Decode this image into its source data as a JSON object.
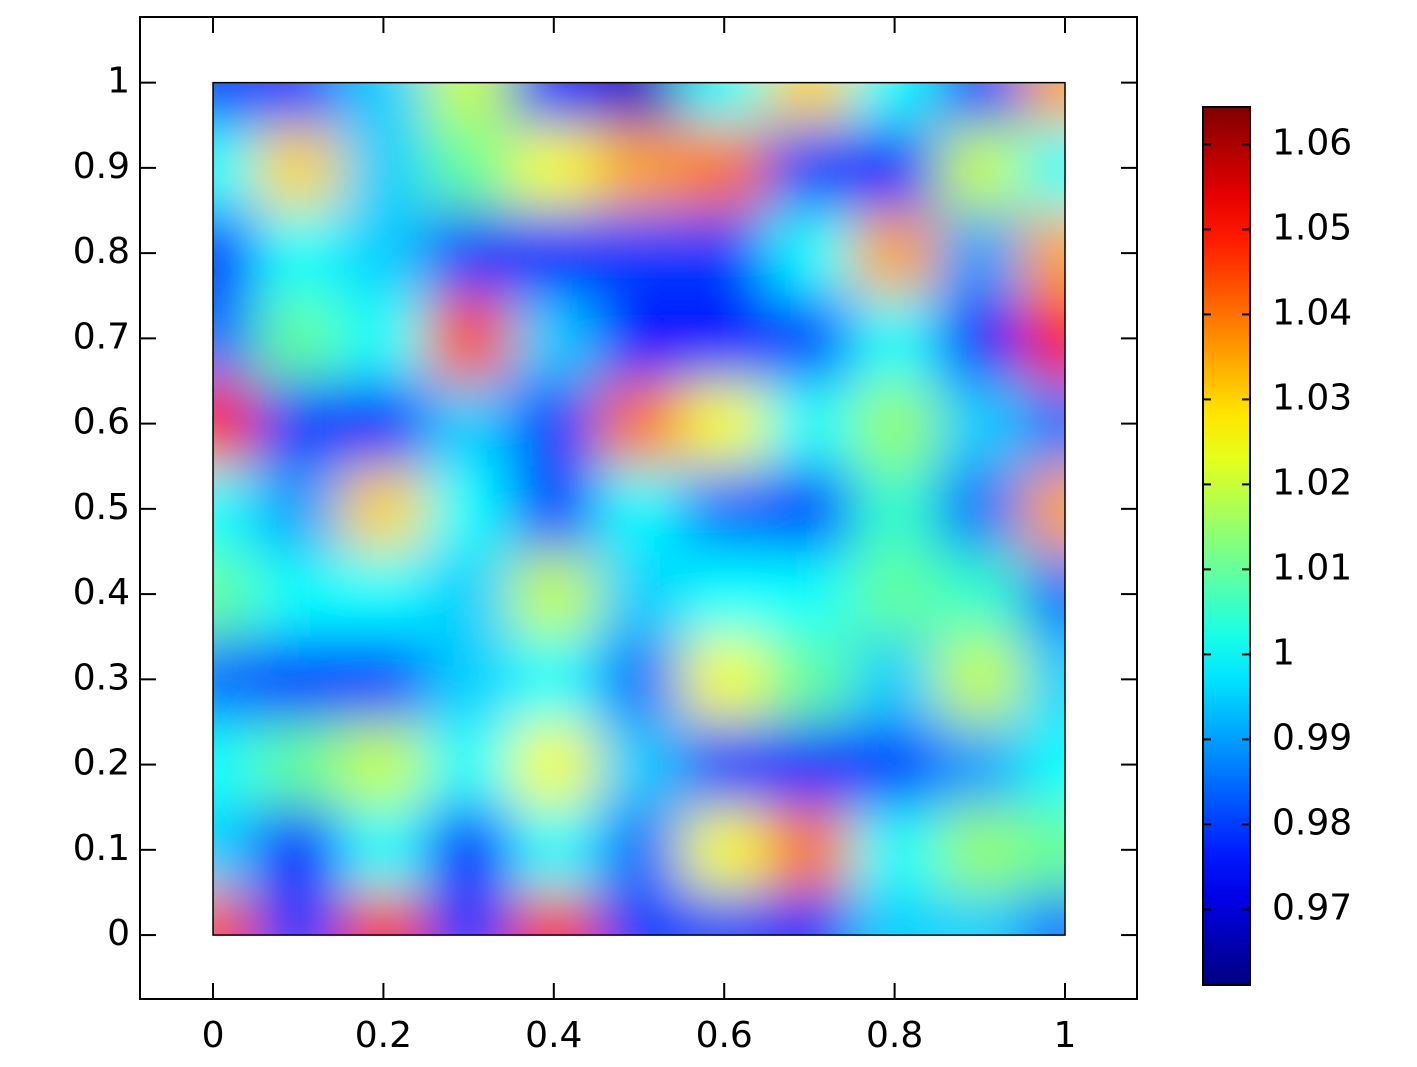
{
  "chart_data": {
    "type": "heatmap",
    "colormap": "jet",
    "x": [
      0,
      0.1,
      0.2,
      0.3,
      0.4,
      0.5,
      0.6,
      0.7,
      0.8,
      0.9,
      1
    ],
    "y": [
      0,
      0.1,
      0.2,
      0.3,
      0.4,
      0.5,
      0.6,
      0.7,
      0.8,
      0.9,
      1
    ],
    "z": [
      [
        1.045,
        0.98,
        1.05,
        0.98,
        1.05,
        0.98,
        0.98,
        0.978,
        0.995,
        0.995,
        0.985
      ],
      [
        0.995,
        0.975,
        1.0,
        0.975,
        1.0,
        0.985,
        1.025,
        1.04,
        1.0,
        1.015,
        1.01
      ],
      [
        1.0,
        1.01,
        1.02,
        1.0,
        1.025,
        0.995,
        0.98,
        0.978,
        0.98,
        0.99,
        1.0
      ],
      [
        0.985,
        0.98,
        0.98,
        0.995,
        1.0,
        0.985,
        1.025,
        1.01,
        0.995,
        1.02,
        0.995
      ],
      [
        1.01,
        1.0,
        1.0,
        0.995,
        1.02,
        0.995,
        1.0,
        1.0,
        1.01,
        1.005,
        0.985
      ],
      [
        1.0,
        0.99,
        1.03,
        1.0,
        0.98,
        1.0,
        0.985,
        0.98,
        1.005,
        0.985,
        1.035
      ],
      [
        1.05,
        0.98,
        0.975,
        0.995,
        0.98,
        1.04,
        1.025,
        1.0,
        1.015,
        0.995,
        0.985
      ],
      [
        0.985,
        1.01,
        1.0,
        1.045,
        0.995,
        0.975,
        0.975,
        0.98,
        1.0,
        0.975,
        1.05
      ],
      [
        0.978,
        1.0,
        0.995,
        0.98,
        0.975,
        0.98,
        0.98,
        1.0,
        1.035,
        0.99,
        1.035
      ],
      [
        1.0,
        1.03,
        0.995,
        1.01,
        1.025,
        1.035,
        1.04,
        0.98,
        0.975,
        1.02,
        1.0
      ],
      [
        0.98,
        0.98,
        0.995,
        1.02,
        0.975,
        0.968,
        1.0,
        1.03,
        1.0,
        0.98,
        1.035
      ]
    ],
    "xlim": [
      -0.0857,
      1.0845
    ],
    "ylim": [
      -0.075,
      1.077
    ],
    "xticks": [
      0,
      0.2,
      0.4,
      0.6,
      0.8,
      1
    ],
    "yticks": [
      0,
      0.1,
      0.2,
      0.3,
      0.4,
      0.5,
      0.6,
      0.7,
      0.8,
      0.9,
      1
    ],
    "clim": [
      0.9611,
      1.0644
    ],
    "cticks": [
      0.97,
      0.98,
      0.99,
      1,
      1.01,
      1.02,
      1.03,
      1.04,
      1.05,
      1.06
    ]
  }
}
